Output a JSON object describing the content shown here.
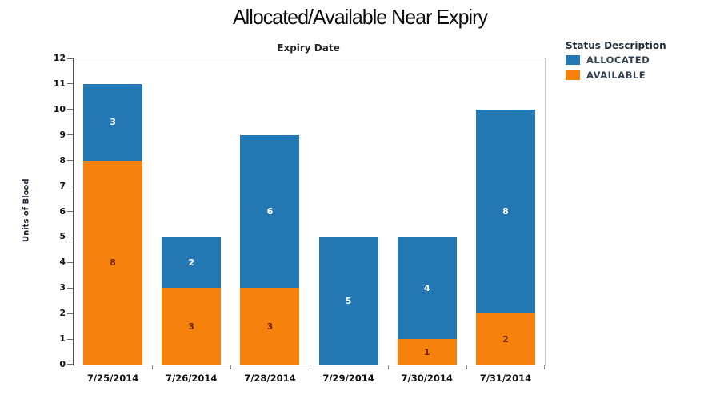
{
  "page_title": "Allocated/Available Near Expiry",
  "chart": {
    "title": "Expiry Date",
    "ylabel": "Units of Blood"
  },
  "legend": {
    "title": "Status Description",
    "items": [
      {
        "label": "ALLOCATED",
        "color": "#2378b4"
      },
      {
        "label": "AVAILABLE",
        "color": "#f6820d"
      }
    ]
  },
  "colors": {
    "allocated": "#2378b4",
    "available": "#f6820d",
    "label_on_blue": "#ffffff",
    "label_on_orange": "#76250a",
    "axis_line": "#4d4d4d",
    "plot_border": "#c8c8c8"
  },
  "chart_data": {
    "type": "bar",
    "stacked": true,
    "title": "Expiry Date",
    "xlabel": "Expiry Date",
    "ylabel": "Units of Blood",
    "categories": [
      "7/25/2014",
      "7/26/2014",
      "7/28/2014",
      "7/29/2014",
      "7/30/2014",
      "7/31/2014"
    ],
    "series": [
      {
        "name": "ALLOCATED",
        "color": "#2378b4",
        "label_color": "#ffffff",
        "values": [
          3,
          2,
          6,
          5,
          4,
          8
        ]
      },
      {
        "name": "AVAILABLE",
        "color": "#f6820d",
        "label_color": "#76250a",
        "values": [
          8,
          3,
          3,
          0,
          1,
          2
        ]
      }
    ],
    "totals": [
      11,
      5,
      9,
      5,
      5,
      10
    ],
    "ylim": [
      0,
      12
    ],
    "ytick_step": 1,
    "grid": false,
    "legend_title": "Status Description",
    "legend_position": "top-right",
    "data_labels": true
  }
}
